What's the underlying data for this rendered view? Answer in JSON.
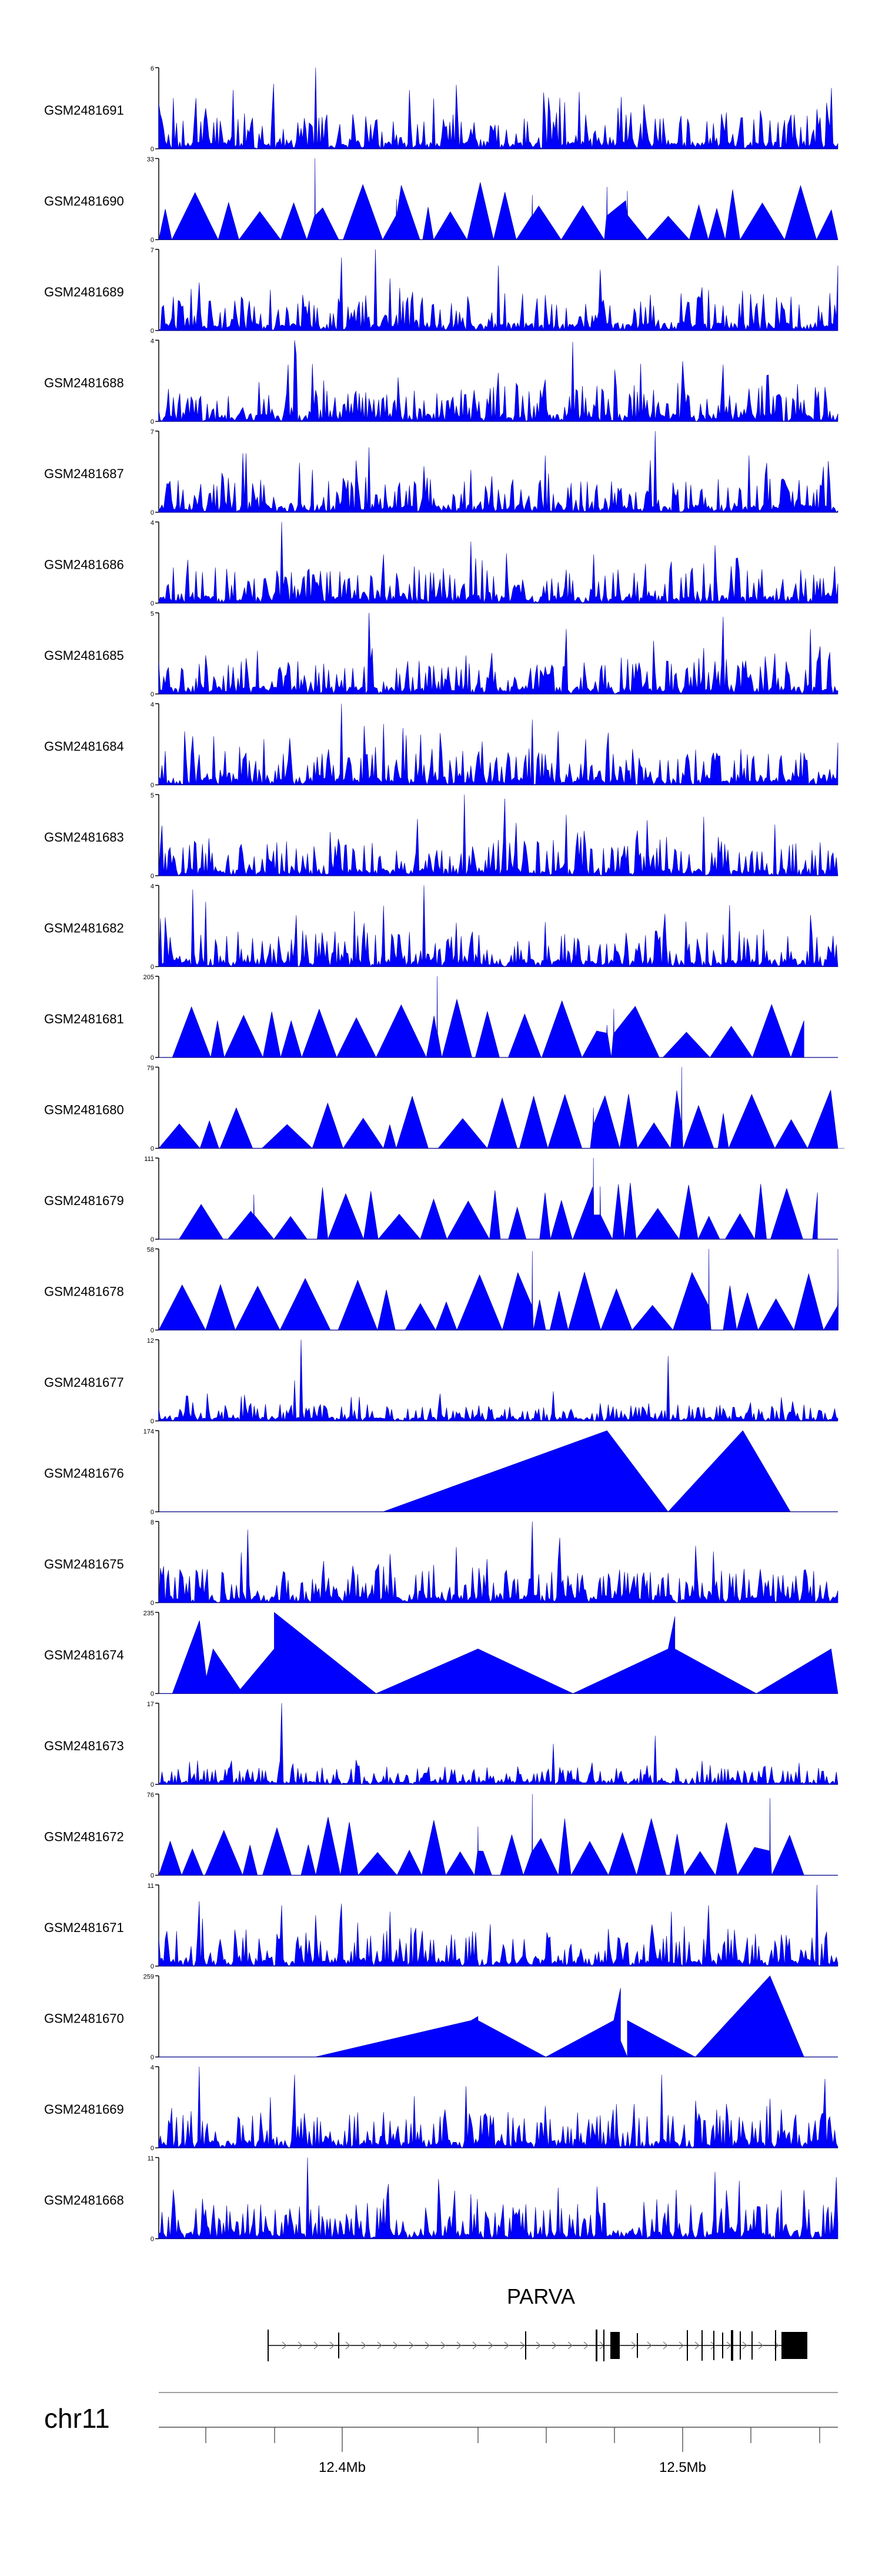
{
  "chart_data": {
    "type": "area",
    "x": [
      "12.4Mb",
      "12.5Mb"
    ],
    "title": "",
    "xlabel": "",
    "ylabel": "",
    "color": "#0000ff",
    "track_samples": 420,
    "tracks": [
      {
        "name": "GSM2481691",
        "ymax": "6",
        "ymin": "0",
        "style": "dense",
        "seed": 11,
        "peaks": [
          [
            0.23,
            1.0
          ],
          [
            0.17,
            0.8
          ],
          [
            0.62,
            0.7
          ],
          [
            0.99,
            0.75
          ]
        ]
      },
      {
        "name": "GSM2481690",
        "ymax": "33",
        "ymin": "0",
        "style": "triangles",
        "seed": 12,
        "peaks": [
          [
            0.23,
            1.0
          ],
          [
            0.66,
            0.65
          ],
          [
            0.69,
            0.6
          ],
          [
            0.55,
            0.55
          ],
          [
            0.35,
            0.5
          ]
        ]
      },
      {
        "name": "GSM2481689",
        "ymax": "7",
        "ymin": "0",
        "style": "dense",
        "seed": 13,
        "peaks": [
          [
            0.32,
            1.0
          ],
          [
            0.27,
            0.9
          ],
          [
            0.5,
            0.8
          ],
          [
            1.0,
            0.8
          ],
          [
            0.65,
            0.75
          ]
        ]
      },
      {
        "name": "GSM2481688",
        "ymax": "4",
        "ymin": "0",
        "style": "dense",
        "seed": 14,
        "peaks": [
          [
            0.2,
            1.0
          ],
          [
            0.61,
            0.98
          ],
          [
            0.19,
            0.7
          ],
          [
            0.83,
            0.7
          ],
          [
            0.5,
            0.6
          ]
        ]
      },
      {
        "name": "GSM2481687",
        "ymax": "7",
        "ymin": "0",
        "style": "dense",
        "seed": 15,
        "peaks": [
          [
            0.73,
            1.0
          ],
          [
            0.31,
            0.8
          ],
          [
            0.57,
            0.7
          ],
          [
            0.87,
            0.7
          ]
        ]
      },
      {
        "name": "GSM2481686",
        "ymax": "4",
        "ymin": "0",
        "style": "dense",
        "seed": 16,
        "peaks": [
          [
            0.18,
            1.0
          ],
          [
            0.33,
            0.6
          ],
          [
            0.64,
            0.6
          ],
          [
            0.85,
            0.55
          ]
        ]
      },
      {
        "name": "GSM2481685",
        "ymax": "5",
        "ymin": "0",
        "style": "dense",
        "seed": 17,
        "peaks": [
          [
            0.31,
            1.0
          ],
          [
            0.83,
            0.95
          ],
          [
            0.6,
            0.8
          ],
          [
            0.96,
            0.8
          ]
        ]
      },
      {
        "name": "GSM2481684",
        "ymax": "4",
        "ymin": "0",
        "style": "dense",
        "seed": 18,
        "peaks": [
          [
            0.27,
            1.0
          ],
          [
            0.33,
            0.75
          ],
          [
            0.36,
            0.7
          ],
          [
            0.05,
            0.6
          ]
        ]
      },
      {
        "name": "GSM2481683",
        "ymax": "5",
        "ymin": "0",
        "style": "dense",
        "seed": 19,
        "peaks": [
          [
            0.45,
            1.0
          ],
          [
            0.51,
            0.95
          ],
          [
            0.6,
            0.75
          ],
          [
            0.38,
            0.7
          ]
        ]
      },
      {
        "name": "GSM2481682",
        "ymax": "4",
        "ymin": "0",
        "style": "dense",
        "seed": 20,
        "peaks": [
          [
            0.39,
            1.0
          ],
          [
            0.05,
            0.95
          ],
          [
            0.07,
            0.8
          ],
          [
            0.33,
            0.75
          ]
        ]
      },
      {
        "name": "GSM2481681",
        "ymax": "205",
        "ymin": "0",
        "style": "triangles",
        "seed": 21,
        "peaks": [
          [
            0.41,
            1.0
          ],
          [
            0.67,
            0.6
          ],
          [
            0.66,
            0.4
          ]
        ],
        "span": [
          0.02,
          0.95
        ]
      },
      {
        "name": "GSM2481680",
        "ymax": "79",
        "ymin": "0",
        "style": "triangles",
        "seed": 22,
        "peaks": [
          [
            0.77,
            1.0
          ],
          [
            0.64,
            0.5
          ]
        ],
        "span": [
          0.0,
          1.0
        ]
      },
      {
        "name": "GSM2481679",
        "ymax": "111",
        "ymin": "0",
        "style": "triangles",
        "seed": 23,
        "peaks": [
          [
            0.64,
            1.0
          ],
          [
            0.65,
            0.65
          ],
          [
            0.14,
            0.55
          ]
        ],
        "span": [
          0.03,
          0.97
        ]
      },
      {
        "name": "GSM2481678",
        "ymax": "58",
        "ymin": "0",
        "style": "triangles",
        "seed": 24,
        "peaks": [
          [
            0.81,
            1.0
          ],
          [
            1.0,
            1.0
          ],
          [
            0.55,
            0.97
          ]
        ],
        "span": [
          0.0,
          1.0
        ]
      },
      {
        "name": "GSM2481677",
        "ymax": "12",
        "ymin": "0",
        "style": "sparse",
        "seed": 25,
        "peaks": [
          [
            0.21,
            1.0
          ],
          [
            0.75,
            0.8
          ],
          [
            0.2,
            0.5
          ]
        ]
      },
      {
        "name": "GSM2481676",
        "ymax": "174",
        "ymin": "0",
        "style": "custom",
        "seed": 26,
        "shape": [
          [
            0.33,
            0.0
          ],
          [
            0.66,
            1.0
          ],
          [
            0.75,
            0.0
          ],
          [
            0.86,
            1.0
          ],
          [
            0.93,
            0.0
          ]
        ]
      },
      {
        "name": "GSM2481675",
        "ymax": "8",
        "ymin": "0",
        "style": "dense",
        "seed": 27,
        "peaks": [
          [
            0.55,
            1.0
          ],
          [
            0.13,
            0.9
          ],
          [
            0.59,
            0.8
          ],
          [
            0.79,
            0.7
          ]
        ]
      },
      {
        "name": "GSM2481674",
        "ymax": "235",
        "ymin": "0",
        "style": "custom",
        "seed": 28,
        "shape": [
          [
            0.02,
            0.0
          ],
          [
            0.06,
            0.9
          ],
          [
            0.07,
            0.2
          ],
          [
            0.08,
            0.55
          ],
          [
            0.12,
            0.05
          ],
          [
            0.17,
            0.55
          ],
          [
            0.17,
            1.0
          ],
          [
            0.32,
            0.0
          ],
          [
            0.47,
            0.55
          ],
          [
            0.61,
            0.0
          ],
          [
            0.75,
            0.55
          ],
          [
            0.76,
            0.95
          ],
          [
            0.76,
            0.55
          ],
          [
            0.88,
            0.0
          ],
          [
            0.99,
            0.55
          ],
          [
            1.0,
            0.0
          ]
        ]
      },
      {
        "name": "GSM2481673",
        "ymax": "17",
        "ymin": "0",
        "style": "sparse",
        "seed": 29,
        "peaks": [
          [
            0.18,
            1.0
          ],
          [
            0.73,
            0.6
          ],
          [
            0.58,
            0.5
          ]
        ]
      },
      {
        "name": "GSM2481672",
        "ymax": "76",
        "ymin": "0",
        "style": "triangles",
        "seed": 30,
        "peaks": [
          [
            0.55,
            1.0
          ],
          [
            0.9,
            0.95
          ],
          [
            0.47,
            0.6
          ]
        ],
        "span": [
          0.0,
          0.95
        ]
      },
      {
        "name": "GSM2481671",
        "ymax": "11",
        "ymin": "0",
        "style": "dense",
        "seed": 31,
        "peaks": [
          [
            0.97,
            1.0
          ],
          [
            0.06,
            0.8
          ],
          [
            0.18,
            0.75
          ],
          [
            0.81,
            0.75
          ]
        ]
      },
      {
        "name": "GSM2481670",
        "ymax": "259",
        "ymin": "0",
        "style": "custom",
        "seed": 32,
        "shape": [
          [
            0.23,
            0.0
          ],
          [
            0.46,
            0.45
          ],
          [
            0.47,
            0.5
          ],
          [
            0.47,
            0.45
          ],
          [
            0.57,
            0.0
          ],
          [
            0.67,
            0.45
          ],
          [
            0.68,
            0.85
          ],
          [
            0.68,
            0.2
          ],
          [
            0.69,
            0.0
          ],
          [
            0.69,
            0.45
          ],
          [
            0.79,
            0.0
          ],
          [
            0.9,
            1.0
          ],
          [
            0.95,
            0.0
          ]
        ]
      },
      {
        "name": "GSM2481669",
        "ymax": "4",
        "ymin": "0",
        "style": "dense",
        "seed": 33,
        "peaks": [
          [
            0.06,
            1.0
          ],
          [
            0.2,
            0.9
          ],
          [
            0.74,
            0.9
          ],
          [
            0.98,
            0.85
          ]
        ]
      },
      {
        "name": "GSM2481668",
        "ymax": "11",
        "ymin": "0",
        "style": "dense",
        "seed": 34,
        "peaks": [
          [
            0.22,
            1.0
          ],
          [
            0.95,
            0.6
          ],
          [
            0.46,
            0.55
          ]
        ]
      }
    ],
    "gene": {
      "name": "PARVA",
      "color": "#000000"
    },
    "chromosome": {
      "name": "chr11"
    },
    "axis": {
      "ticks": [
        "12.4Mb",
        "12.5Mb"
      ]
    }
  }
}
